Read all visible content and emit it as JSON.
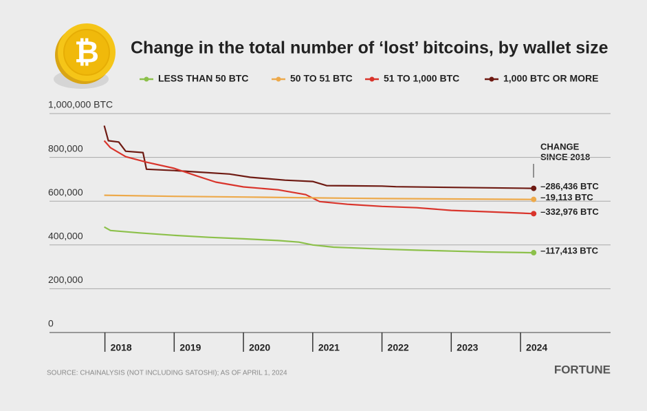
{
  "chart_data": {
    "type": "line",
    "title": "Change in the total number of ‘lost’ bitcoins, by wallet size",
    "annotation": [
      "CHANGE",
      "SINCE 2018"
    ],
    "source": "SOURCE: CHAINALYSIS (NOT INCLUDING SATOSHI); AS OF APRIL 1, 2024",
    "brand": "FORTUNE",
    "xlim": [
      2017.2,
      2025.3
    ],
    "xticks": [
      2018,
      2019,
      2020,
      2021,
      2022,
      2023,
      2024
    ],
    "ylim": [
      0,
      1000000
    ],
    "yticks": [
      0,
      {
        "value": 200000,
        "label": "200,000"
      },
      {
        "value": 400000,
        "label": "400,000"
      },
      {
        "value": 600000,
        "label": "600,000"
      },
      {
        "value": 800000,
        "label": "800,000"
      },
      {
        "value": 1000000,
        "label": "1,000,000 BTC"
      }
    ],
    "grid": true,
    "series": [
      {
        "name": "LESS THAN 50 BTC",
        "color": "#8cc04a",
        "change_label": "–117,413 BTC",
        "x": [
          2017.99,
          2018.08,
          2018.5,
          2019.0,
          2019.5,
          2020.0,
          2020.5,
          2020.8,
          2021.0,
          2021.3,
          2022.0,
          2022.5,
          2023.0,
          2023.5,
          2024.19
        ],
        "values": [
          482000,
          466000,
          455000,
          444000,
          435000,
          428000,
          420000,
          413000,
          400000,
          390000,
          381000,
          376000,
          372000,
          368000,
          364600
        ]
      },
      {
        "name": "50 TO 51 BTC",
        "color": "#eda94a",
        "change_label": "–19,113 BTC",
        "x": [
          2017.99,
          2019.0,
          2020.0,
          2021.0,
          2022.0,
          2023.0,
          2024.19
        ],
        "values": [
          627000,
          622000,
          619000,
          615000,
          612000,
          610000,
          608000
        ]
      },
      {
        "name": "51 TO 1,000 BTC",
        "color": "#d9342b",
        "change_label": "–332,976 BTC",
        "x": [
          2017.99,
          2018.08,
          2018.3,
          2018.6,
          2019.0,
          2019.3,
          2019.6,
          2020.0,
          2020.5,
          2020.9,
          2021.1,
          2021.5,
          2022.0,
          2022.5,
          2023.0,
          2023.5,
          2024.19
        ],
        "values": [
          876000,
          844000,
          803000,
          778000,
          750000,
          718000,
          687000,
          665000,
          652000,
          630000,
          598000,
          586000,
          576000,
          570000,
          558000,
          552000,
          543000
        ]
      },
      {
        "name": "1,000 BTC OR MORE",
        "color": "#6e1a12",
        "change_label": "–286,436 BTC",
        "x": [
          2017.99,
          2018.05,
          2018.2,
          2018.3,
          2018.55,
          2018.6,
          2019.0,
          2019.3,
          2019.8,
          2020.1,
          2020.6,
          2021.0,
          2021.2,
          2022.0,
          2022.2,
          2023.0,
          2024.19
        ],
        "values": [
          945000,
          876000,
          870000,
          828000,
          822000,
          746000,
          740000,
          734000,
          724000,
          709000,
          696000,
          690000,
          671000,
          669000,
          666000,
          663000,
          658600
        ]
      }
    ]
  }
}
